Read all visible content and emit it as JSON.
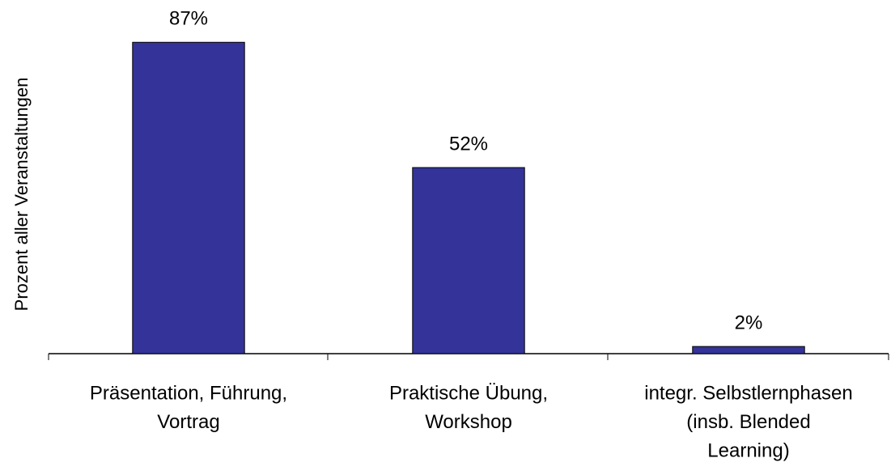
{
  "chart_data": {
    "type": "bar",
    "ylabel": "Prozent aller Veranstaltungen",
    "categories": [
      [
        "Präsentation, Führung,",
        "Vortrag"
      ],
      [
        "Praktische Übung,",
        "Workshop"
      ],
      [
        "integr. Selbstlernphasen",
        "(insb. Blended",
        "Learning)"
      ]
    ],
    "values": [
      87,
      52,
      2
    ],
    "value_labels": [
      "87%",
      "52%",
      "2%"
    ],
    "color": "#333399",
    "ylim": [
      0,
      90
    ]
  }
}
